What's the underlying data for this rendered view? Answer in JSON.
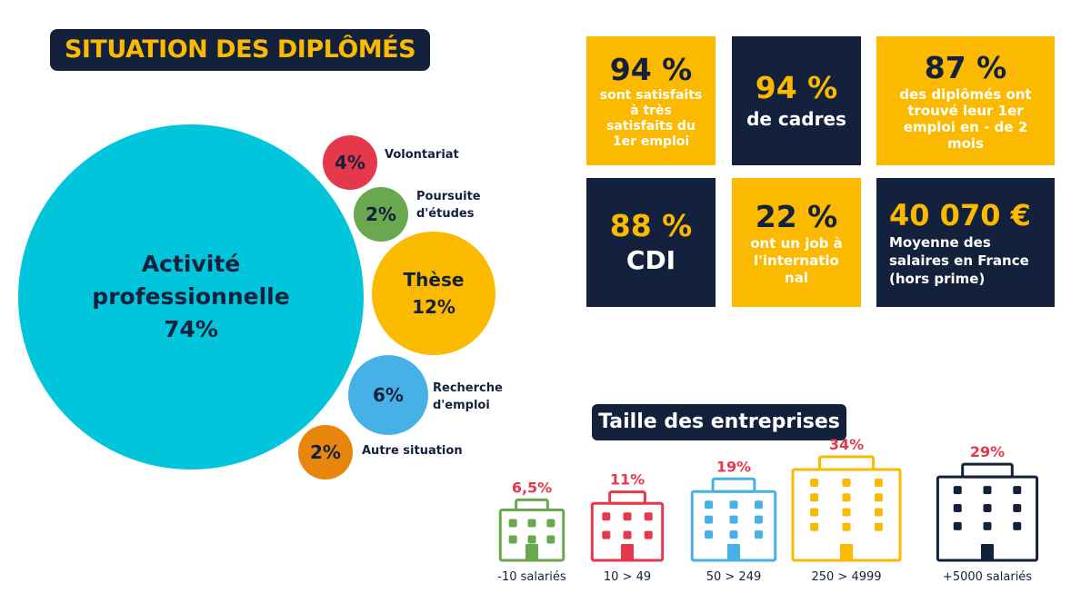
{
  "title": "SITUATION DES DIPLÔMÉS",
  "colors": {
    "navy": "#14213d",
    "gold": "#fbb900",
    "cyan": "#00c5db",
    "red": "#e5384b",
    "green": "#6aa84f",
    "blue": "#46b1e6",
    "orange": "#e8850c"
  },
  "situation": {
    "main": {
      "label": "Activité professionnelle",
      "value": "74%"
    },
    "these": {
      "label": "Thèse",
      "value": "12%"
    },
    "volontariat": {
      "label": "Volontariat",
      "value": "4%"
    },
    "poursuite": {
      "label": "Poursuite d'études",
      "value": "2%"
    },
    "recherche": {
      "label": "Recherche d'emploi",
      "value": "6%"
    },
    "autre": {
      "label": "Autre situation",
      "value": "2%"
    }
  },
  "stats": [
    {
      "value": "94 %",
      "text": "sont satisfaits à très satisfaits du 1er emploi"
    },
    {
      "value": "94 %",
      "text": "de cadres"
    },
    {
      "value": "87 %",
      "text": "des diplômés ont trouvé leur 1er emploi en - de 2 mois"
    },
    {
      "value": "88 %",
      "text": "CDI"
    },
    {
      "value": "22 %",
      "text": "ont un job à l'internatio nal"
    },
    {
      "value": "40 070 €",
      "text": "Moyenne des salaires en France (hors prime)"
    }
  ],
  "company_size_title": "Taille des entreprises",
  "chart_data": [
    {
      "type": "bubble",
      "title": "SITUATION DES DIPLÔMÉS",
      "categories": [
        "Activité professionnelle",
        "Thèse",
        "Recherche d'emploi",
        "Volontariat",
        "Poursuite d'études",
        "Autre situation"
      ],
      "values": [
        74,
        12,
        6,
        4,
        2,
        2
      ]
    },
    {
      "type": "bar",
      "title": "Taille des entreprises",
      "categories": [
        "-10 salariés",
        "10 > 49",
        "50 > 249",
        "250 > 4999",
        "+5000 salariés"
      ],
      "values": [
        6.5,
        11,
        19,
        34,
        29
      ],
      "value_labels": [
        "6,5%",
        "11%",
        "19%",
        "34%",
        "29%"
      ],
      "colors": [
        "#6aa84f",
        "#e5384b",
        "#46b1e6",
        "#fbb900",
        "#14213d"
      ]
    }
  ]
}
